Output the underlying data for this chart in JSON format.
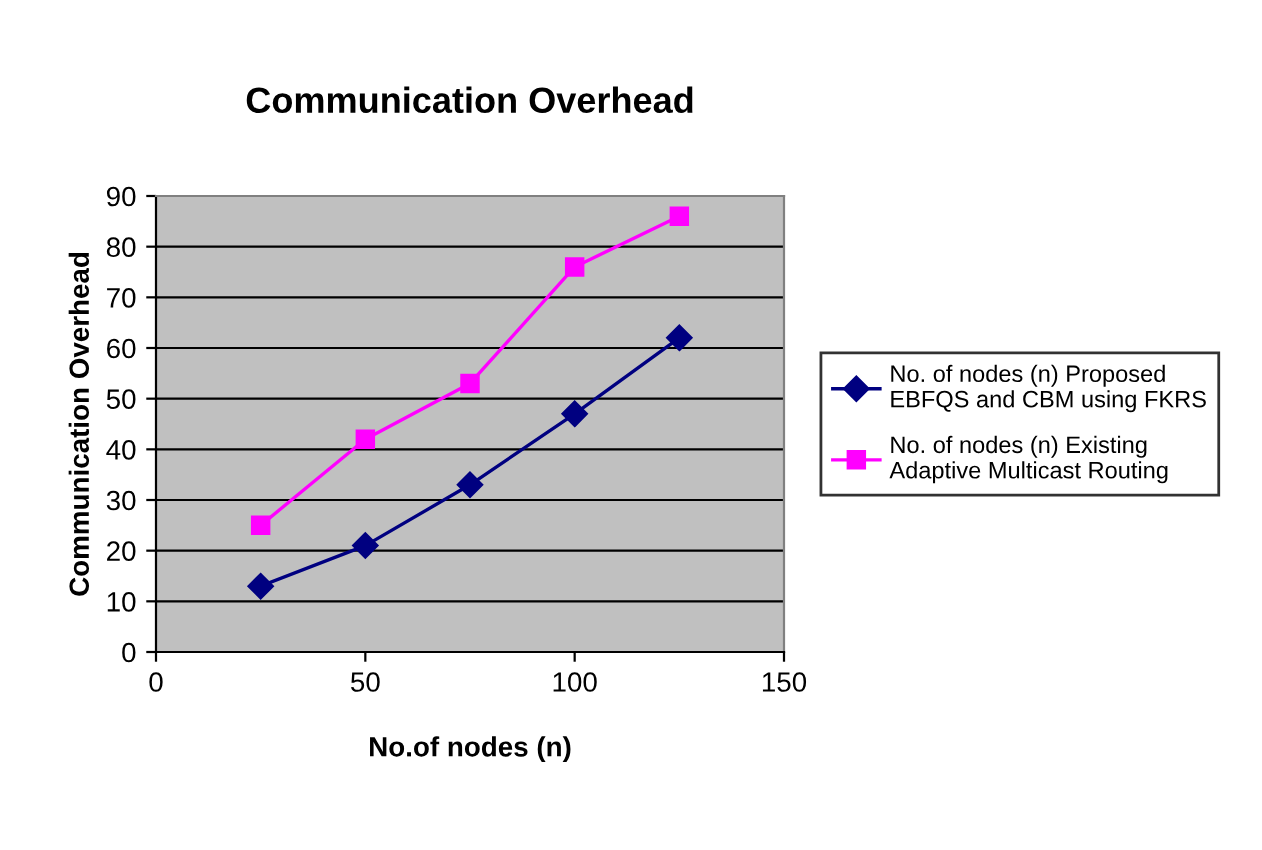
{
  "chart_data": {
    "type": "line",
    "title": "Communication Overhead",
    "xlabel": "No.of nodes (n)",
    "ylabel": "Communication Overhead",
    "x": [
      25,
      50,
      75,
      100,
      125
    ],
    "series": [
      {
        "name": "No. of nodes (n) Proposed EBFQS and CBM using FKRS",
        "color": "#000080",
        "marker": "diamond",
        "values": [
          13,
          21,
          33,
          47,
          62
        ]
      },
      {
        "name": "No. of nodes (n) Existing Adaptive Multicast Routing",
        "color": "#ff00ff",
        "marker": "square",
        "values": [
          25,
          42,
          53,
          76,
          86
        ]
      }
    ],
    "xlim": [
      0,
      150
    ],
    "xticks": [
      0,
      50,
      100,
      150
    ],
    "ylim": [
      0,
      90
    ],
    "yticks": [
      0,
      10,
      20,
      30,
      40,
      50,
      60,
      70,
      80,
      90
    ],
    "grid": "y",
    "legend": "right",
    "line_style": "solid"
  }
}
